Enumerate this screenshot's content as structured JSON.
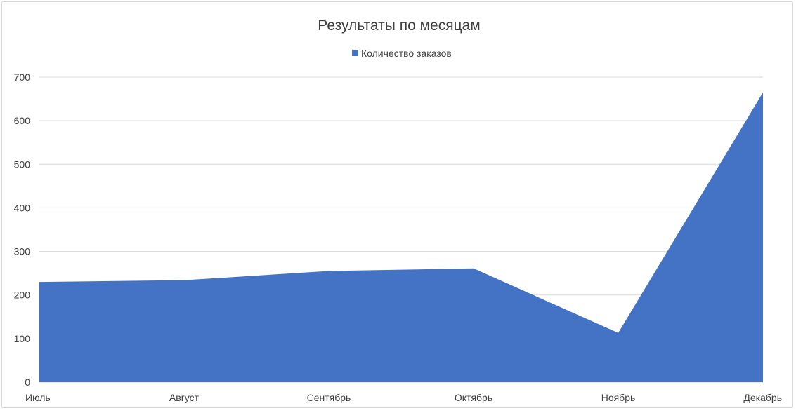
{
  "chart_data": {
    "type": "area",
    "title": "Результаты по месяцам",
    "categories": [
      "Июль",
      "Август",
      "Сентябрь",
      "Октябрь",
      "Ноябрь",
      "Декабрь"
    ],
    "series": [
      {
        "name": "Количество заказов",
        "values": [
          230,
          234,
          255,
          261,
          113,
          665
        ],
        "color": "#4472C4"
      }
    ],
    "ylim": [
      0,
      700
    ],
    "yticks": [
      0,
      100,
      200,
      300,
      400,
      500,
      600,
      700
    ],
    "grid": true,
    "legend_position": "top"
  }
}
